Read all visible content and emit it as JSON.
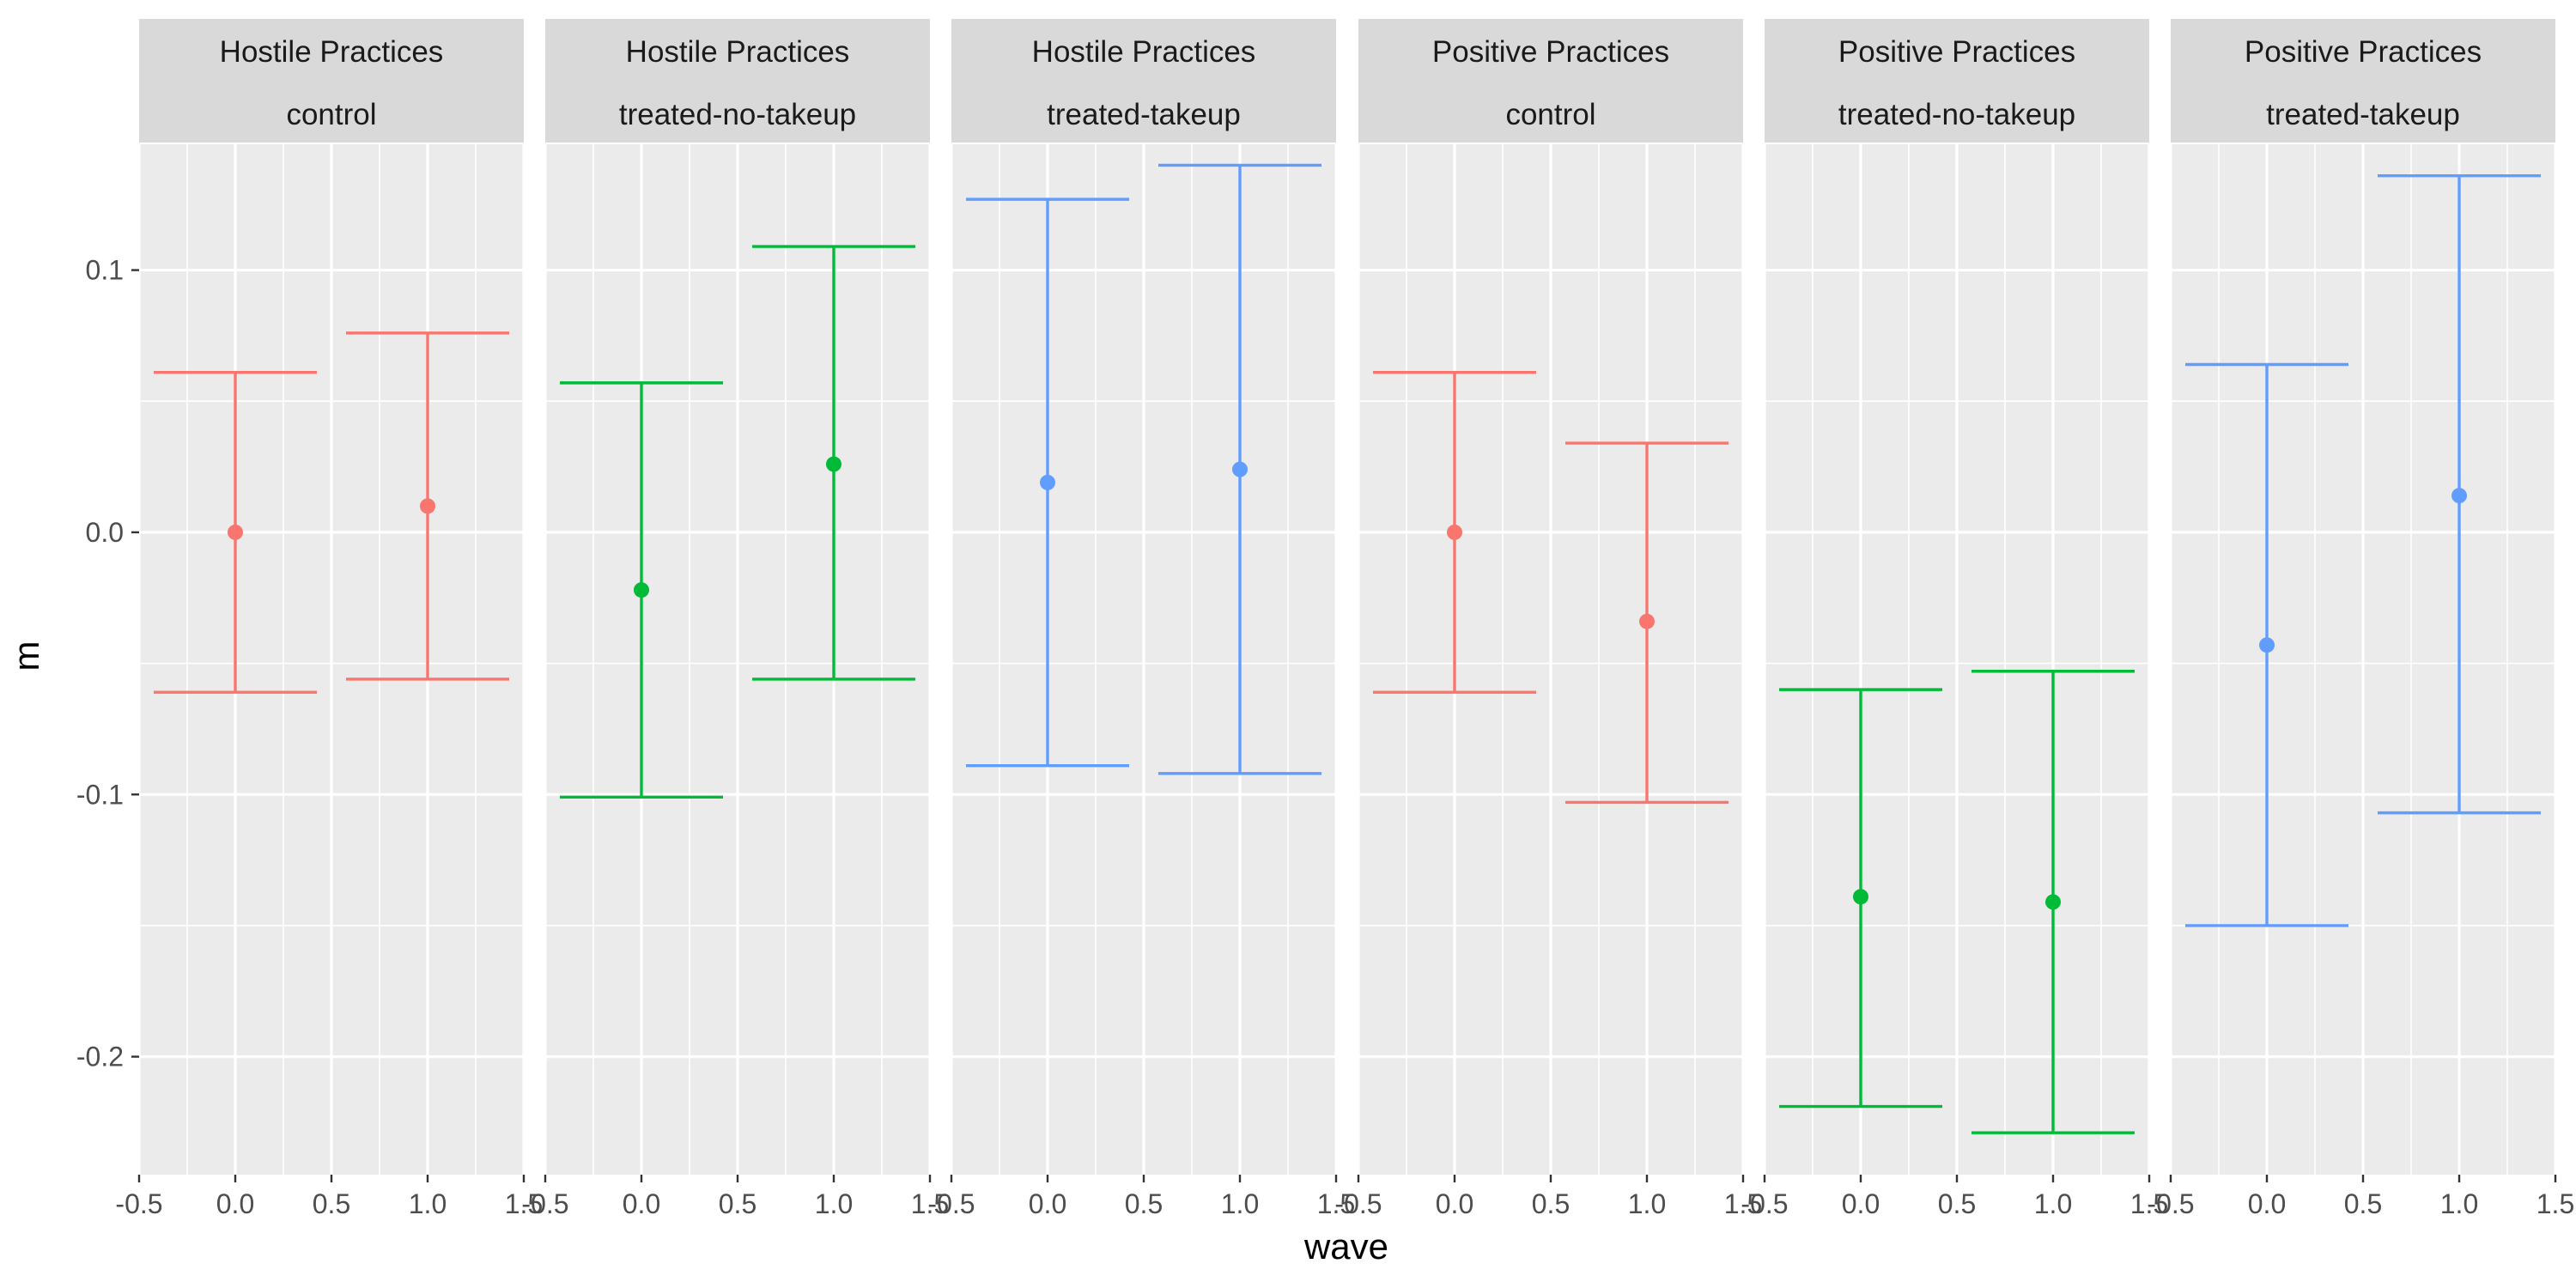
{
  "chart_data": {
    "type": "errorbar",
    "ylabel": "m",
    "xlabel": "wave",
    "xlim": [
      -0.5,
      1.5
    ],
    "ylim": [
      -0.245,
      0.148
    ],
    "x_ticks": [
      -0.5,
      0.0,
      0.5,
      1.0,
      1.5
    ],
    "x_tick_labels": [
      "-0.5",
      "0.0",
      "0.5",
      "1.0",
      "1.5"
    ],
    "y_ticks": [
      0.1,
      0.0,
      -0.1,
      -0.2
    ],
    "y_tick_labels": [
      "0.1",
      "0.0",
      "-0.1",
      "-0.2"
    ],
    "grid": true,
    "colors": {
      "control": "#F8766D",
      "treated-no-takeup": "#00BA38",
      "treated-takeup": "#619CFF",
      "panel_bg": "#EBEBEB",
      "strip_bg": "#D9D9D9",
      "grid": "#FFFFFF"
    },
    "panels": [
      {
        "facet": [
          "Hostile Practices",
          "control"
        ],
        "group": "control",
        "points": [
          {
            "x": 0.0,
            "y": 0.0,
            "ymin": -0.061,
            "ymax": 0.061
          },
          {
            "x": 1.0,
            "y": 0.01,
            "ymin": -0.056,
            "ymax": 0.076
          }
        ]
      },
      {
        "facet": [
          "Hostile Practices",
          "treated-no-takeup"
        ],
        "group": "treated-no-takeup",
        "points": [
          {
            "x": 0.0,
            "y": -0.022,
            "ymin": -0.101,
            "ymax": 0.057
          },
          {
            "x": 1.0,
            "y": 0.026,
            "ymin": -0.056,
            "ymax": 0.109
          }
        ]
      },
      {
        "facet": [
          "Hostile Practices",
          "treated-takeup"
        ],
        "group": "treated-takeup",
        "points": [
          {
            "x": 0.0,
            "y": 0.019,
            "ymin": -0.089,
            "ymax": 0.127
          },
          {
            "x": 1.0,
            "y": 0.024,
            "ymin": -0.092,
            "ymax": 0.14
          }
        ]
      },
      {
        "facet": [
          "Positive Practices",
          "control"
        ],
        "group": "control",
        "points": [
          {
            "x": 0.0,
            "y": 0.0,
            "ymin": -0.061,
            "ymax": 0.061
          },
          {
            "x": 1.0,
            "y": -0.034,
            "ymin": -0.103,
            "ymax": 0.034
          }
        ]
      },
      {
        "facet": [
          "Positive Practices",
          "treated-no-takeup"
        ],
        "group": "treated-no-takeup",
        "points": [
          {
            "x": 0.0,
            "y": -0.139,
            "ymin": -0.219,
            "ymax": -0.06
          },
          {
            "x": 1.0,
            "y": -0.141,
            "ymin": -0.229,
            "ymax": -0.053
          }
        ]
      },
      {
        "facet": [
          "Positive Practices",
          "treated-takeup"
        ],
        "group": "treated-takeup",
        "points": [
          {
            "x": 0.0,
            "y": -0.043,
            "ymin": -0.15,
            "ymax": 0.064
          },
          {
            "x": 1.0,
            "y": 0.014,
            "ymin": -0.107,
            "ymax": 0.136
          }
        ]
      }
    ]
  }
}
